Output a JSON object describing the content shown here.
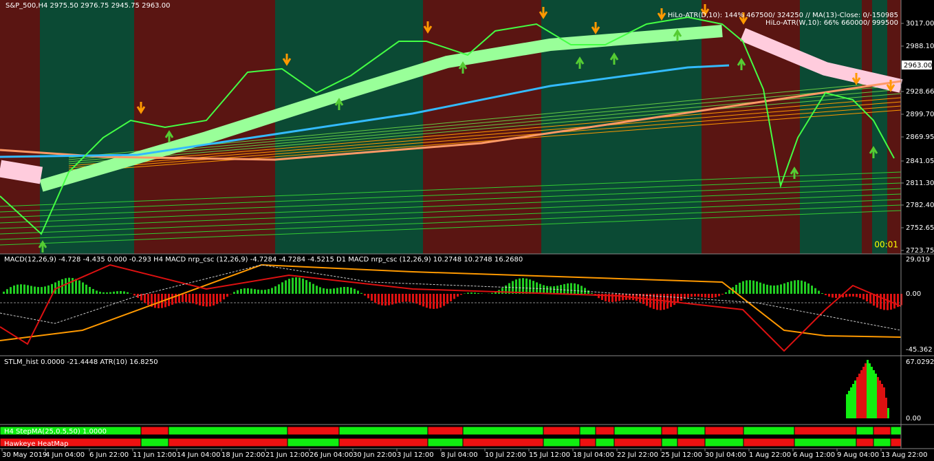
{
  "main_panel": {
    "header": "S&P_500,H4  2975.50 2976.75 2945.75 2963.00",
    "info_lines": [
      "HiLo-ATR(D,10): 144% 467500/ 324250 // MA(13)-Close: 0/-150985",
      "HiLo-ATR(W,10): 66% 660000/ 999500"
    ],
    "price_labels": [
      "3017.00",
      "2988.10",
      "2928.66",
      "2899.70",
      "2869.95",
      "2841.05",
      "2811.30",
      "2782.40",
      "2752.65",
      "2723.75"
    ],
    "current_price": "2963.00",
    "timer": "00:01"
  },
  "macd_panel": {
    "header": "MACD(12,26,9) -4.728 -4.435 0.000 -0.293  H4 MACD nrp_csc (12,26,9) -4.7284 -4.7284 -4.5215  D1 MACD nrp_csc (12,26,9) 10.2748 10.2748 16.2680",
    "labels": [
      "29.019",
      "0.00",
      "-45.362"
    ]
  },
  "stlm_panel": {
    "header": "STLM_hist 0.0000 -21.4448  ATR(10) 16.8250",
    "labels": [
      "67.0292",
      "0.00"
    ]
  },
  "stepma_panel": {
    "header": "H4 StepMA(25,0.5,50) 1.0000"
  },
  "heatmap_panel": {
    "header": "Hawkeye HeatMap"
  },
  "time_axis": [
    "30 May 2019",
    "4 Jun 04:00",
    "6 Jun 22:00",
    "11 Jun 12:00",
    "14 Jun 04:00",
    "18 Jun 22:00",
    "21 Jun 12:00",
    "26 Jun 04:00",
    "30 Jun 22:00",
    "3 Jul 12:00",
    "8 Jul 04:00",
    "10 Jul 22:00",
    "15 Jul 12:00",
    "18 Jul 04:00",
    "22 Jul 22:00",
    "25 Jul 12:00",
    "30 Jul 04:00",
    "1 Aug 22:00",
    "6 Aug 12:00",
    "9 Aug 04:00",
    "13 Aug 22:00"
  ]
}
